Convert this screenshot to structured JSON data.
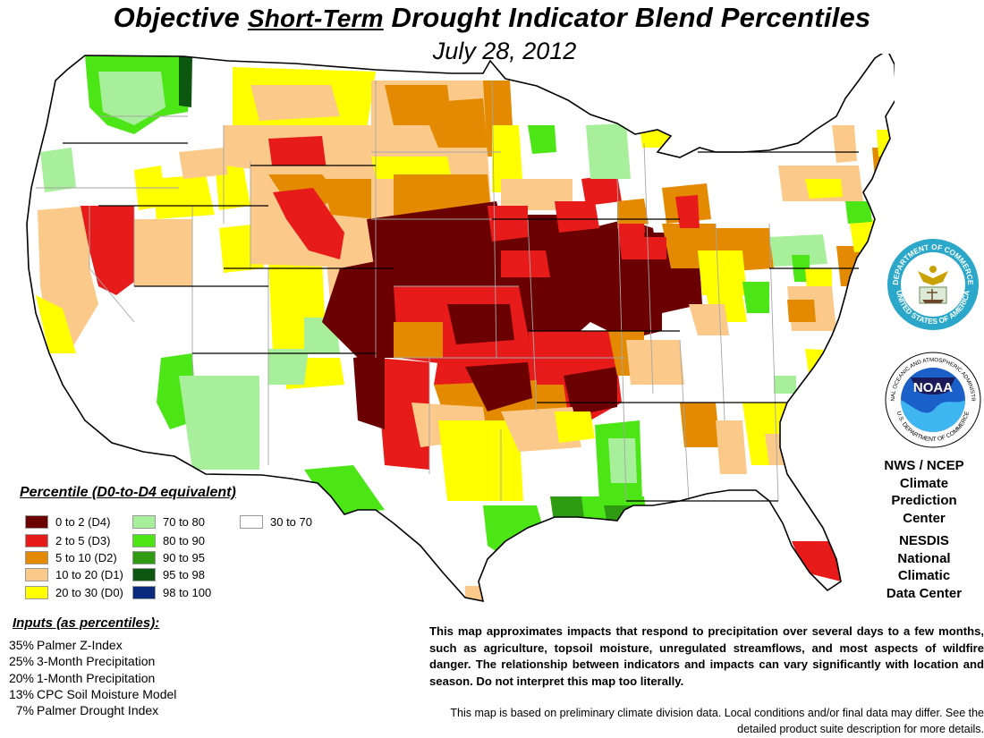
{
  "title": {
    "prefix": "Objective",
    "emphasis": "Short-Term",
    "suffix": "Drought Indicator Blend Percentiles"
  },
  "date": "July 28, 2012",
  "legend": {
    "title": "Percentile  (D0-to-D4 equivalent)",
    "items": [
      {
        "label": "0 to 2  (D4)",
        "color": "#6b0000"
      },
      {
        "label": "2 to 5  (D3)",
        "color": "#e81b1b"
      },
      {
        "label": "5 to 10  (D2)",
        "color": "#e38a00"
      },
      {
        "label": "10 to 20  (D1)",
        "color": "#fbc98a"
      },
      {
        "label": "20 to 30  (D0)",
        "color": "#ffff00"
      },
      {
        "label": "70 to 80",
        "color": "#a8ef9c"
      },
      {
        "label": "80 to 90",
        "color": "#4ce516"
      },
      {
        "label": "90 to 95",
        "color": "#2f9b12"
      },
      {
        "label": "95 to 98",
        "color": "#0e5710"
      },
      {
        "label": "98 to 100",
        "color": "#0a2a7e"
      },
      {
        "label": "30 to 70",
        "color": "#ffffff"
      }
    ]
  },
  "inputs": {
    "title": "Inputs (as percentiles):",
    "items": [
      {
        "pct": "35%",
        "label": "Palmer Z-Index"
      },
      {
        "pct": "25%",
        "label": "3-Month Precipitation"
      },
      {
        "pct": "20%",
        "label": "1-Month Precipitation"
      },
      {
        "pct": "13%",
        "label": "CPC Soil Moisture Model"
      },
      {
        "pct": "7%",
        "label": "Palmer Drought Index"
      }
    ]
  },
  "agencies": {
    "nws": [
      "NWS / NCEP",
      "Climate",
      "Prediction",
      "Center"
    ],
    "nesdis": [
      "NESDIS",
      "National",
      "Climatic",
      "Data Center"
    ],
    "commerce_seal_text": [
      "DEPARTMENT OF COMMERCE",
      "UNITED STATES OF AMERICA"
    ],
    "noaa_text": [
      "NATIONAL OCEANIC AND ATMOSPHERIC ADMINISTRATION",
      "U.S. DEPARTMENT OF COMMERCE"
    ],
    "noaa_logo": "NOAA"
  },
  "notes": {
    "primary": "This map approximates impacts that respond to precipitation over several days to a few months, such as agriculture, topsoil moisture, unregulated streamflows, and most aspects of wildfire danger. The relationship between indicators and impacts can vary significantly with location and season. Do not interpret this map too literally.",
    "secondary": "This map is based on preliminary climate division data. Local conditions and/or final data may differ. See the detailed product suite description for more details."
  }
}
